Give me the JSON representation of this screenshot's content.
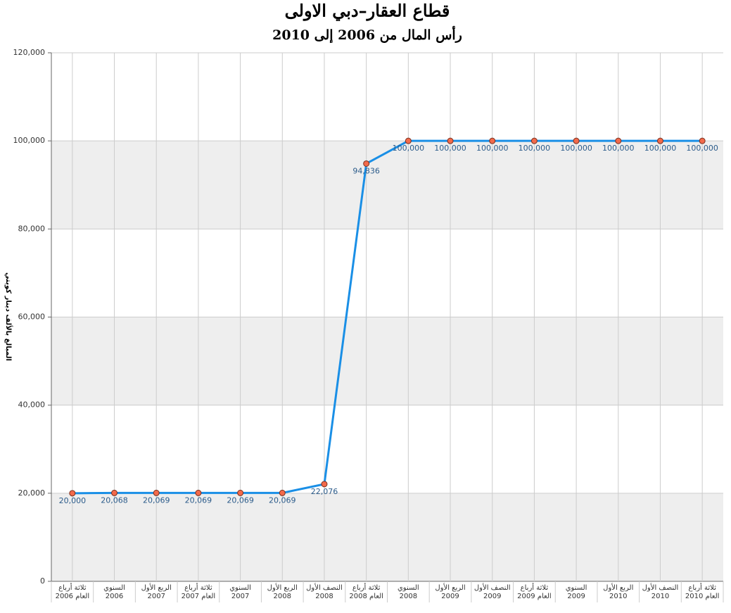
{
  "chart_data": {
    "type": "line",
    "title": "قطاع العقار–دبي الاولى",
    "subtitle": "رأس المال من 2006 إلى 2010",
    "y_label": "المبالغ بالألف دينار كويتي",
    "categories": [
      "ثلاثة أرباع العام 2006",
      "السنوي 2006",
      "الربع الأول 2007",
      "ثلاثة أرباع العام 2007",
      "السنوي 2007",
      "الربع الأول 2008",
      "النصف الأول 2008",
      "ثلاثة أرباع العام 2008",
      "السنوي 2008",
      "الربع الأول 2009",
      "النصف الأول 2009",
      "ثلاثة أرباع العام 2009",
      "السنوي 2009",
      "الربع الأول 2010",
      "النصف الأول 2010",
      "ثلاثة أرباع العام 2010"
    ],
    "values": [
      20000,
      20068,
      20069,
      20069,
      20069,
      20069,
      22076,
      94836,
      100000,
      100000,
      100000,
      100000,
      100000,
      100000,
      100000,
      100000
    ],
    "value_labels": [
      "20,000",
      "20,068",
      "20,069",
      "20,069",
      "20,069",
      "20,069",
      "22,076",
      "94,836",
      "100,000",
      "100,000",
      "100,000",
      "100,000",
      "100,000",
      "100,000",
      "100,000",
      "100,000"
    ],
    "color": "#1a8fe6",
    "marker_color": "#f26a4b",
    "ylim": [
      0,
      120000
    ],
    "yticks": [
      0,
      {
        "value": 20000,
        "label": "20,000"
      },
      {
        "value": 40000,
        "label": "40,000"
      },
      {
        "value": 60000,
        "label": "60,000"
      },
      {
        "value": 80000,
        "label": "80,000"
      },
      {
        "value": 100000,
        "label": "100,000"
      },
      {
        "value": 120000,
        "label": "120,000"
      }
    ],
    "grid": true
  }
}
